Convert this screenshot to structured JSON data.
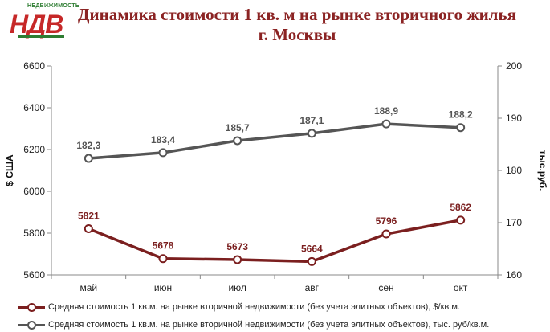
{
  "logo": {
    "small_text": "НЕДВИЖИМОСТЬ",
    "main_text": "НДВ"
  },
  "colors": {
    "usd_series": "#7b1f1f",
    "rub_series": "#555555",
    "title": "#8b2323",
    "axis": "#888888"
  },
  "chart_data": {
    "type": "line",
    "title": "Динамика стоимости 1 кв. м на  рынке вторичного жилья г. Москвы",
    "categories": [
      "май",
      "июн",
      "июл",
      "авг",
      "сен",
      "окт"
    ],
    "y_left": {
      "label": "$ США",
      "min": 5600,
      "max": 6600,
      "ticks": [
        5600,
        5800,
        6000,
        6200,
        6400,
        6600
      ]
    },
    "y_right": {
      "label": "тыс.руб.",
      "min": 160,
      "max": 200,
      "ticks": [
        160,
        170,
        180,
        190,
        200
      ]
    },
    "grid": false,
    "legend_position": "bottom",
    "series": [
      {
        "name": "Средняя стоимость 1 кв.м. на рынке вторичной недвижимости (без учета элитных объектов), $/кв.м.",
        "axis": "left",
        "values": [
          5821,
          5678,
          5673,
          5664,
          5796,
          5862
        ],
        "labels": [
          "5821",
          "5678",
          "5673",
          "5664",
          "5796",
          "5862"
        ]
      },
      {
        "name": "Средняя стоимость 1 кв.м. на рынке вторичной недвижимости (без учета элитных объектов), тыс. руб/кв.м.",
        "axis": "right",
        "values": [
          182.3,
          183.4,
          185.7,
          187.1,
          188.9,
          188.2
        ],
        "labels": [
          "182,3",
          "183,4",
          "185,7",
          "187,1",
          "188,9",
          "188,2"
        ]
      }
    ]
  }
}
